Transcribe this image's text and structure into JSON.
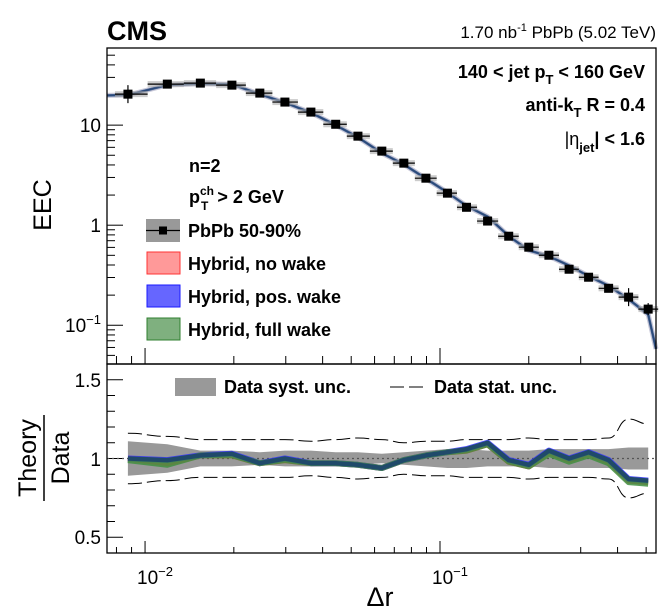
{
  "header": {
    "experiment": "CMS",
    "lumi_prefix": "1.70 nb",
    "lumi_sup": "-1",
    "lumi_suffix": " PbPb (5.02 TeV)"
  },
  "chart_data": [
    {
      "panel": "main",
      "type": "line",
      "xscale": "log",
      "yscale": "log",
      "xlabel": "Δr",
      "ylabel": "EEC",
      "xlim": [
        0.00743,
        0.54
      ],
      "ylim": [
        0.041,
        59
      ],
      "yticks": [
        {
          "value": 10,
          "label": "10"
        },
        {
          "value": 1,
          "label": "1"
        },
        {
          "value": 0.1,
          "label": "10",
          "sup": "−1"
        }
      ],
      "annotations": {
        "line1_a": "140 < jet p",
        "line1_sub": "T",
        "line1_b": " < 160 GeV",
        "line2_a": "anti-k",
        "line2_sub": "T",
        "line2_b": " R = 0.4",
        "line3_a": "|η",
        "line3_sub": "jet",
        "line3_b": "| < 1.6",
        "n_label": "n=2",
        "ptch_a": "p",
        "ptch_sup": "ch",
        "ptch_sub": "T",
        "ptch_b": " > 2 GeV"
      },
      "legend": {
        "placement": "center-left",
        "entries": [
          {
            "label": "PbPb 50-90%",
            "color": "#999999",
            "marker": "square"
          },
          {
            "label": "Hybrid, no wake",
            "color": "#ff9999",
            "edge": "#ff3333"
          },
          {
            "label": "Hybrid, pos. wake",
            "color": "#6666ff",
            "edge": "#1a1aff"
          },
          {
            "label": "Hybrid, full wake",
            "color": "#7fb07f",
            "edge": "#2f7f2f"
          }
        ]
      },
      "x": [
        0.00875,
        0.0119,
        0.0154,
        0.0197,
        0.0245,
        0.0298,
        0.0365,
        0.0443,
        0.0527,
        0.0635,
        0.0754,
        0.0896,
        0.106,
        0.123,
        0.145,
        0.171,
        0.2,
        0.234,
        0.274,
        0.319,
        0.373,
        0.436,
        0.508
      ],
      "series": [
        {
          "name": "PbPb 50-90%",
          "values": [
            20.4,
            25.7,
            26.3,
            25.1,
            20.9,
            17.0,
            13.5,
            10.2,
            7.76,
            5.5,
            4.17,
            2.95,
            2.09,
            1.51,
            1.1,
            0.776,
            0.603,
            0.501,
            0.363,
            0.302,
            0.234,
            0.191,
            0.145
          ],
          "color": "#000000"
        }
      ],
      "theory_x": [
        0.00743,
        0.00875,
        0.0119,
        0.0154,
        0.0197,
        0.0245,
        0.0298,
        0.0365,
        0.0443,
        0.0527,
        0.0635,
        0.0754,
        0.0896,
        0.106,
        0.123,
        0.145,
        0.171,
        0.2,
        0.234,
        0.274,
        0.319,
        0.373,
        0.436,
        0.508,
        0.54
      ],
      "theory_values": [
        19.8,
        20.0,
        25.2,
        25.9,
        25.6,
        20.4,
        16.8,
        13.3,
        10.0,
        7.55,
        5.25,
        4.05,
        2.92,
        2.12,
        1.56,
        1.22,
        0.78,
        0.56,
        0.49,
        0.395,
        0.31,
        0.248,
        0.182,
        0.128,
        0.058
      ],
      "theory_color": "#2b4a7a"
    },
    {
      "panel": "ratio",
      "type": "area",
      "xscale": "log",
      "xlabel": "Δr",
      "ylabel_num": "Theory",
      "ylabel_den": "Data",
      "xlim": [
        0.00743,
        0.54
      ],
      "ylim": [
        0.4,
        1.6
      ],
      "yticks": [
        {
          "value": 1.5,
          "label": "1.5"
        },
        {
          "value": 1,
          "label": "1"
        },
        {
          "value": 0.5,
          "label": "0.5"
        }
      ],
      "xticks": [
        {
          "value": 0.01,
          "label": "10",
          "sup": "−2"
        },
        {
          "value": 0.1,
          "label": "10",
          "sup": "−1"
        }
      ],
      "legend": {
        "placement": "top",
        "entries": [
          {
            "label": "Data syst. unc.",
            "style": "band",
            "color": "#999999"
          },
          {
            "label": "Data stat. unc.",
            "style": "dashed",
            "color": "#000000"
          }
        ]
      },
      "x": [
        0.00875,
        0.0119,
        0.0154,
        0.0197,
        0.0245,
        0.0298,
        0.0365,
        0.0443,
        0.0527,
        0.0635,
        0.0754,
        0.0896,
        0.106,
        0.123,
        0.145,
        0.171,
        0.2,
        0.234,
        0.274,
        0.319,
        0.373,
        0.436,
        0.508
      ],
      "syst_unc": [
        0.11,
        0.09,
        0.05,
        0.05,
        0.04,
        0.05,
        0.05,
        0.04,
        0.04,
        0.03,
        0.04,
        0.05,
        0.06,
        0.06,
        0.05,
        0.05,
        0.05,
        0.06,
        0.06,
        0.06,
        0.06,
        0.07,
        0.07
      ],
      "stat_unc": [
        0.16,
        0.14,
        0.12,
        0.12,
        0.12,
        0.12,
        0.11,
        0.12,
        0.13,
        0.12,
        0.1,
        0.11,
        0.11,
        0.12,
        0.12,
        0.12,
        0.13,
        0.12,
        0.12,
        0.12,
        0.13,
        0.25,
        0.22
      ],
      "series": [
        {
          "name": "Hybrid, no wake",
          "values": [
            1.0,
            0.97,
            1.02,
            1.02,
            0.97,
            0.99,
            0.97,
            0.97,
            0.96,
            0.94,
            0.99,
            1.02,
            1.04,
            1.05,
            1.09,
            0.98,
            0.95,
            1.04,
            0.99,
            1.03,
            0.98,
            0.86,
            0.85
          ],
          "color": "#ff4444"
        },
        {
          "name": "Hybrid, pos. wake",
          "values": [
            1.0,
            0.99,
            1.02,
            1.03,
            0.97,
            1.0,
            0.97,
            0.97,
            0.96,
            0.94,
            0.99,
            1.02,
            1.04,
            1.06,
            1.1,
            0.99,
            0.96,
            1.05,
            1.0,
            1.04,
            0.99,
            0.87,
            0.86
          ],
          "color": "#3333ff"
        },
        {
          "name": "Hybrid, full wake",
          "values": [
            0.99,
            0.96,
            1.02,
            1.02,
            0.97,
            0.99,
            0.97,
            0.97,
            0.96,
            0.94,
            0.99,
            1.02,
            1.04,
            1.05,
            1.09,
            0.98,
            0.95,
            1.03,
            0.98,
            1.02,
            0.97,
            0.85,
            0.84
          ],
          "color": "#3f8f3f"
        }
      ],
      "reference_line": 1
    }
  ]
}
